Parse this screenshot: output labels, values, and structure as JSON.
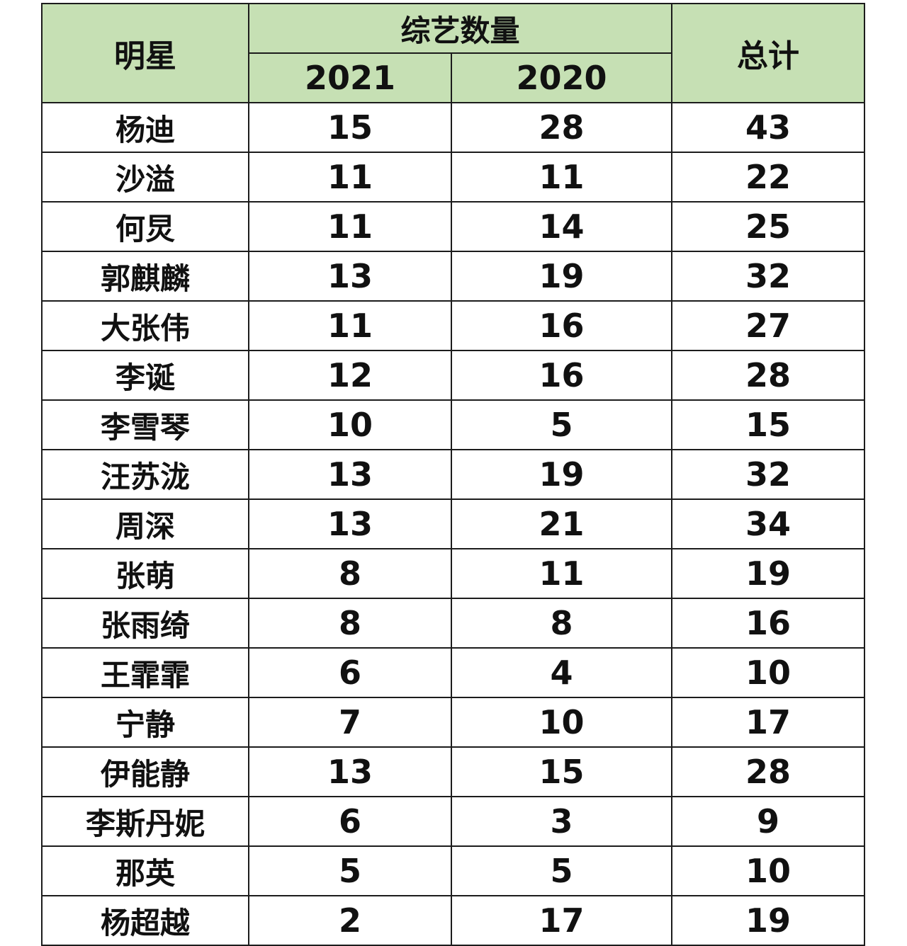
{
  "table": {
    "headers": {
      "star": "明星",
      "group": "综艺数量",
      "year1": "2021",
      "year2": "2020",
      "total": "总计"
    },
    "rows": [
      {
        "name": "杨迪",
        "y2021": "15",
        "y2020": "28",
        "total": "43"
      },
      {
        "name": "沙溢",
        "y2021": "11",
        "y2020": "11",
        "total": "22"
      },
      {
        "name": "何炅",
        "y2021": "11",
        "y2020": "14",
        "total": "25"
      },
      {
        "name": "郭麒麟",
        "y2021": "13",
        "y2020": "19",
        "total": "32"
      },
      {
        "name": "大张伟",
        "y2021": "11",
        "y2020": "16",
        "total": "27"
      },
      {
        "name": "李诞",
        "y2021": "12",
        "y2020": "16",
        "total": "28"
      },
      {
        "name": "李雪琴",
        "y2021": "10",
        "y2020": "5",
        "total": "15"
      },
      {
        "name": "汪苏泷",
        "y2021": "13",
        "y2020": "19",
        "total": "32"
      },
      {
        "name": "周深",
        "y2021": "13",
        "y2020": "21",
        "total": "34"
      },
      {
        "name": "张萌",
        "y2021": "8",
        "y2020": "11",
        "total": "19"
      },
      {
        "name": "张雨绮",
        "y2021": "8",
        "y2020": "8",
        "total": "16"
      },
      {
        "name": "王霏霏",
        "y2021": "6",
        "y2020": "4",
        "total": "10"
      },
      {
        "name": "宁静",
        "y2021": "7",
        "y2020": "10",
        "total": "17"
      },
      {
        "name": "伊能静",
        "y2021": "13",
        "y2020": "15",
        "total": "28"
      },
      {
        "name": "李斯丹妮",
        "y2021": "6",
        "y2020": "3",
        "total": "9"
      },
      {
        "name": "那英",
        "y2021": "5",
        "y2020": "5",
        "total": "10"
      },
      {
        "name": "杨超越",
        "y2021": "2",
        "y2020": "17",
        "total": "19"
      }
    ]
  },
  "colors": {
    "header_bg": "#c6e0b4",
    "border": "#1c1c1c",
    "text": "#111111"
  }
}
